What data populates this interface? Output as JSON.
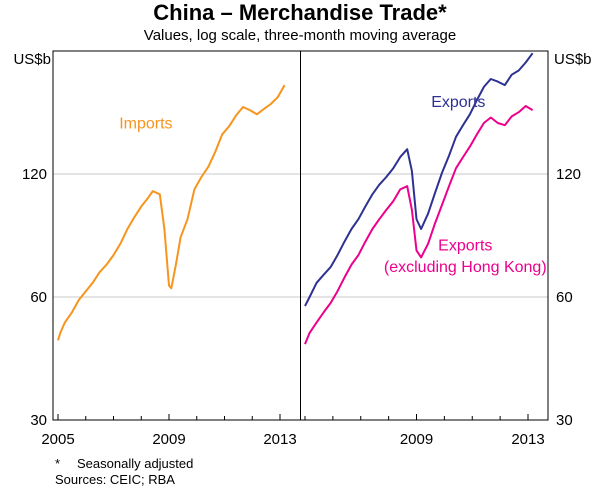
{
  "title": "China – Merchandise Trade*",
  "subtitle": "Values, log scale, three-month moving average",
  "footnote": {
    "marker": "*",
    "text": "Seasonally adjusted"
  },
  "sources": "Sources: CEIC; RBA",
  "colors": {
    "imports": "#F7941D",
    "exports": "#2E3192",
    "exports_ex_hk": "#EC008C",
    "grid": "#c8c8c8",
    "frame": "#000000"
  },
  "chart_data": {
    "type": "line",
    "y_scale": "log",
    "ylabel_left": "US$b",
    "ylabel_right": "US$b",
    "y_ticks": [
      30,
      60,
      120
    ],
    "ylim": [
      30,
      240
    ],
    "grid": true,
    "panels": [
      {
        "name": "left",
        "x_ticks": [
          "2005",
          "2009",
          "2013"
        ],
        "xlim": [
          "2005-01",
          "2013-06"
        ],
        "series": [
          {
            "name": "Imports",
            "color": "#F7941D",
            "points": [
              [
                "2005-01",
                47
              ],
              [
                "2005-02",
                49
              ],
              [
                "2005-04",
                52
              ],
              [
                "2005-07",
                55
              ],
              [
                "2005-10",
                59
              ],
              [
                "2006-01",
                62
              ],
              [
                "2006-04",
                65
              ],
              [
                "2006-07",
                69
              ],
              [
                "2006-10",
                72
              ],
              [
                "2007-01",
                76
              ],
              [
                "2007-04",
                81
              ],
              [
                "2007-07",
                88
              ],
              [
                "2007-10",
                94
              ],
              [
                "2008-01",
                100
              ],
              [
                "2008-04",
                105
              ],
              [
                "2008-06",
                109
              ],
              [
                "2008-09",
                107
              ],
              [
                "2008-11",
                88
              ],
              [
                "2009-01",
                64
              ],
              [
                "2009-02",
                63
              ],
              [
                "2009-04",
                72
              ],
              [
                "2009-06",
                84
              ],
              [
                "2009-09",
                93
              ],
              [
                "2009-12",
                110
              ],
              [
                "2010-03",
                118
              ],
              [
                "2010-06",
                125
              ],
              [
                "2010-09",
                136
              ],
              [
                "2010-12",
                150
              ],
              [
                "2011-03",
                157
              ],
              [
                "2011-06",
                167
              ],
              [
                "2011-09",
                175
              ],
              [
                "2011-12",
                172
              ],
              [
                "2012-03",
                168
              ],
              [
                "2012-06",
                173
              ],
              [
                "2012-09",
                178
              ],
              [
                "2012-12",
                185
              ],
              [
                "2013-03",
                198
              ]
            ]
          }
        ],
        "annotations": [
          {
            "text": "Imports",
            "x": "2008-03",
            "y": 155,
            "color": "#F7941D"
          }
        ]
      },
      {
        "name": "right",
        "x_ticks": [
          "2009",
          "2013"
        ],
        "xlim": [
          "2005-01",
          "2013-06"
        ],
        "series": [
          {
            "name": "Exports",
            "color": "#2E3192",
            "points": [
              [
                "2005-01",
                57
              ],
              [
                "2005-03",
                60
              ],
              [
                "2005-06",
                65
              ],
              [
                "2005-09",
                68
              ],
              [
                "2005-12",
                71
              ],
              [
                "2006-03",
                76
              ],
              [
                "2006-06",
                82
              ],
              [
                "2006-09",
                88
              ],
              [
                "2006-12",
                93
              ],
              [
                "2007-03",
                100
              ],
              [
                "2007-06",
                107
              ],
              [
                "2007-09",
                113
              ],
              [
                "2007-12",
                118
              ],
              [
                "2008-03",
                124
              ],
              [
                "2008-06",
                132
              ],
              [
                "2008-09",
                138
              ],
              [
                "2008-11",
                122
              ],
              [
                "2009-01",
                93
              ],
              [
                "2009-03",
                88
              ],
              [
                "2009-06",
                96
              ],
              [
                "2009-09",
                108
              ],
              [
                "2009-12",
                121
              ],
              [
                "2010-03",
                133
              ],
              [
                "2010-06",
                148
              ],
              [
                "2010-09",
                158
              ],
              [
                "2010-12",
                168
              ],
              [
                "2011-03",
                182
              ],
              [
                "2011-06",
                196
              ],
              [
                "2011-09",
                205
              ],
              [
                "2011-12",
                202
              ],
              [
                "2012-03",
                198
              ],
              [
                "2012-06",
                210
              ],
              [
                "2012-09",
                215
              ],
              [
                "2012-12",
                225
              ],
              [
                "2013-03",
                237
              ]
            ]
          },
          {
            "name": "Exports (excluding Hong Kong)",
            "color": "#EC008C",
            "points": [
              [
                "2005-01",
                46
              ],
              [
                "2005-03",
                49
              ],
              [
                "2005-06",
                52
              ],
              [
                "2005-09",
                55
              ],
              [
                "2005-12",
                58
              ],
              [
                "2006-03",
                62
              ],
              [
                "2006-06",
                67
              ],
              [
                "2006-09",
                72
              ],
              [
                "2006-12",
                76
              ],
              [
                "2007-03",
                82
              ],
              [
                "2007-06",
                88
              ],
              [
                "2007-09",
                93
              ],
              [
                "2007-12",
                98
              ],
              [
                "2008-03",
                103
              ],
              [
                "2008-06",
                110
              ],
              [
                "2008-09",
                112
              ],
              [
                "2008-11",
                98
              ],
              [
                "2009-01",
                78
              ],
              [
                "2009-03",
                75
              ],
              [
                "2009-06",
                81
              ],
              [
                "2009-09",
                91
              ],
              [
                "2009-12",
                101
              ],
              [
                "2010-03",
                112
              ],
              [
                "2010-06",
                124
              ],
              [
                "2010-09",
                132
              ],
              [
                "2010-12",
                140
              ],
              [
                "2011-03",
                150
              ],
              [
                "2011-06",
                160
              ],
              [
                "2011-09",
                165
              ],
              [
                "2011-12",
                160
              ],
              [
                "2012-03",
                158
              ],
              [
                "2012-06",
                166
              ],
              [
                "2012-09",
                170
              ],
              [
                "2012-12",
                176
              ],
              [
                "2013-03",
                172
              ]
            ]
          }
        ],
        "annotations": [
          {
            "text": "Exports",
            "x": "2010-07",
            "y": 175,
            "color": "#2E3192"
          },
          {
            "text": "Exports",
            "x": "2010-10",
            "y": 78,
            "color": "#EC008C"
          },
          {
            "text": "(excluding Hong Kong)",
            "x": "2010-10",
            "y": 69,
            "color": "#EC008C"
          }
        ]
      }
    ]
  }
}
